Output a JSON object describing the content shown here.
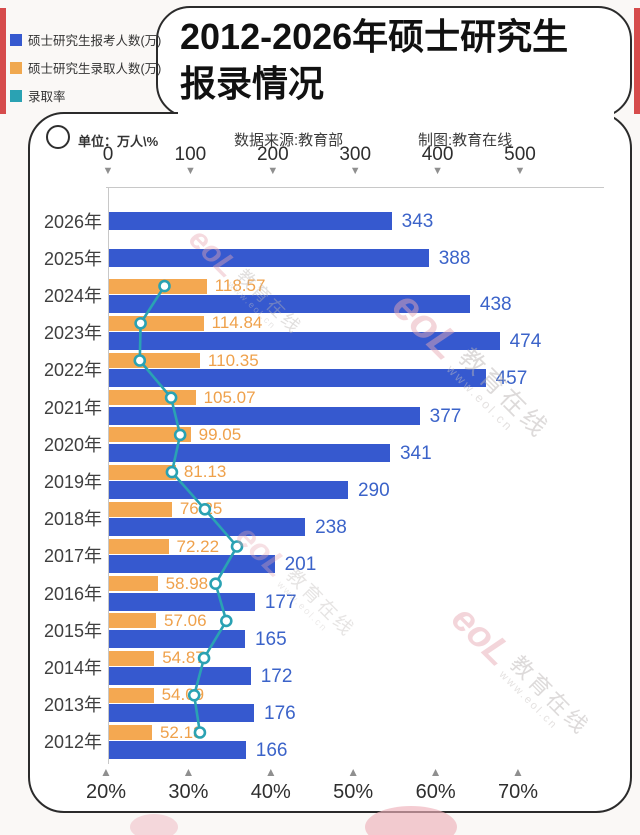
{
  "page": {
    "background": "#faf8f6",
    "accent_red": "#d64c4c",
    "panel_border": "#2b2b2b"
  },
  "title": {
    "line1": "2012-2026年硕士研究生",
    "line2": "报录情况"
  },
  "meta": {
    "unit_label": "单位：万人\\%",
    "source": "数据来源:教育部",
    "credit": "制图:教育在线"
  },
  "legend": {
    "items": [
      {
        "label": "硕士研究生报考人数(万)",
        "color": "#3659cf"
      },
      {
        "label": "硕士研究生录取人数(万)",
        "color": "#f0a84f"
      },
      {
        "label": "录取率",
        "color": "#2aa2b3"
      }
    ]
  },
  "watermark": {
    "logo": "eoL",
    "text": "教育在线",
    "url": "www.eol.cn"
  },
  "chart_data": {
    "type": "bar",
    "orientation": "horizontal",
    "title": "2012-2026年硕士研究生报录情况",
    "categories": [
      "2026年",
      "2025年",
      "2024年",
      "2023年",
      "2022年",
      "2021年",
      "2020年",
      "2019年",
      "2018年",
      "2017年",
      "2016年",
      "2015年",
      "2014年",
      "2013年",
      "2012年"
    ],
    "series": [
      {
        "name": "硕士研究生报考人数(万)",
        "type": "bar",
        "color": "#3659cf",
        "values": [
          343,
          388,
          438,
          474,
          457,
          377,
          341,
          290,
          238,
          201,
          177,
          165,
          172,
          176,
          166
        ]
      },
      {
        "name": "硕士研究生录取人数(万)",
        "type": "bar",
        "color": "#f4a851",
        "values": [
          null,
          null,
          118.57,
          114.84,
          110.35,
          105.07,
          99.05,
          81.13,
          76.25,
          72.22,
          58.98,
          57.06,
          54.87,
          54.09,
          52.13
        ]
      },
      {
        "name": "录取率",
        "type": "line",
        "color": "#2aa2b3",
        "values_percent": [
          null,
          null,
          27.1,
          24.2,
          24.1,
          27.9,
          29.0,
          28.0,
          32.0,
          35.9,
          33.3,
          34.6,
          31.9,
          30.7,
          31.4
        ]
      }
    ],
    "top_axis": {
      "ticks": [
        0,
        100,
        200,
        300,
        400,
        500
      ],
      "min": 0,
      "max": 500,
      "unit": "万"
    },
    "bottom_axis": {
      "tick_labels": [
        "20%",
        "30%",
        "40%",
        "50%",
        "60%",
        "70%"
      ],
      "min": 20,
      "max": 70,
      "unit": "%"
    },
    "grid": false,
    "legend_position": "top-left"
  }
}
